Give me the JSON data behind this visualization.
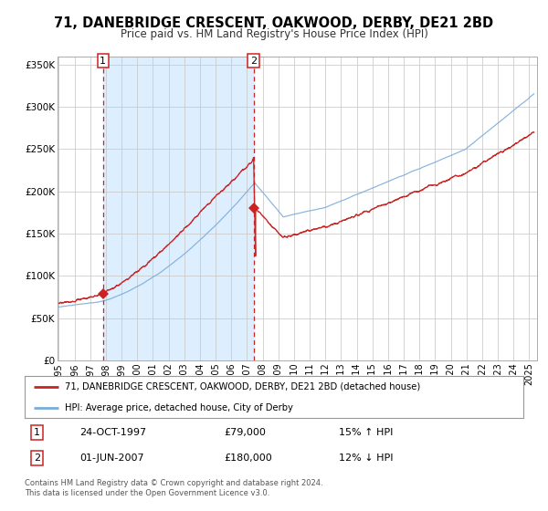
{
  "title": "71, DANEBRIDGE CRESCENT, OAKWOOD, DERBY, DE21 2BD",
  "subtitle": "Price paid vs. HM Land Registry's House Price Index (HPI)",
  "red_label": "71, DANEBRIDGE CRESCENT, OAKWOOD, DERBY, DE21 2BD (detached house)",
  "blue_label": "HPI: Average price, detached house, City of Derby",
  "sale1_date": "24-OCT-1997",
  "sale1_price": 79000,
  "sale1_hpi": "15% ↑ HPI",
  "sale2_date": "01-JUN-2007",
  "sale2_price": 180000,
  "sale2_hpi": "12% ↓ HPI",
  "ylim": [
    0,
    360000
  ],
  "xlim_start": 1994.92,
  "xlim_end": 2025.5,
  "shade_start": 1997.82,
  "shade_end": 2007.42,
  "vline1_x": 1997.82,
  "vline2_x": 2007.42,
  "marker1_x": 1997.82,
  "marker1_y": 79000,
  "marker2_x": 2007.42,
  "marker2_y": 180000,
  "red_color": "#cc2222",
  "blue_color": "#7aabdb",
  "shade_color": "#ddeeff",
  "background_color": "#ffffff",
  "grid_color": "#cccccc",
  "footnote": "Contains HM Land Registry data © Crown copyright and database right 2024.\nThis data is licensed under the Open Government Licence v3.0.",
  "yticks": [
    0,
    50000,
    100000,
    150000,
    200000,
    250000,
    300000,
    350000
  ],
  "ytick_labels": [
    "£0",
    "£50K",
    "£100K",
    "£150K",
    "£200K",
    "£250K",
    "£300K",
    "£350K"
  ],
  "xticks": [
    1995,
    1996,
    1997,
    1998,
    1999,
    2000,
    2001,
    2002,
    2003,
    2004,
    2005,
    2006,
    2007,
    2008,
    2009,
    2010,
    2011,
    2012,
    2013,
    2014,
    2015,
    2016,
    2017,
    2018,
    2019,
    2020,
    2021,
    2022,
    2023,
    2024,
    2025
  ]
}
